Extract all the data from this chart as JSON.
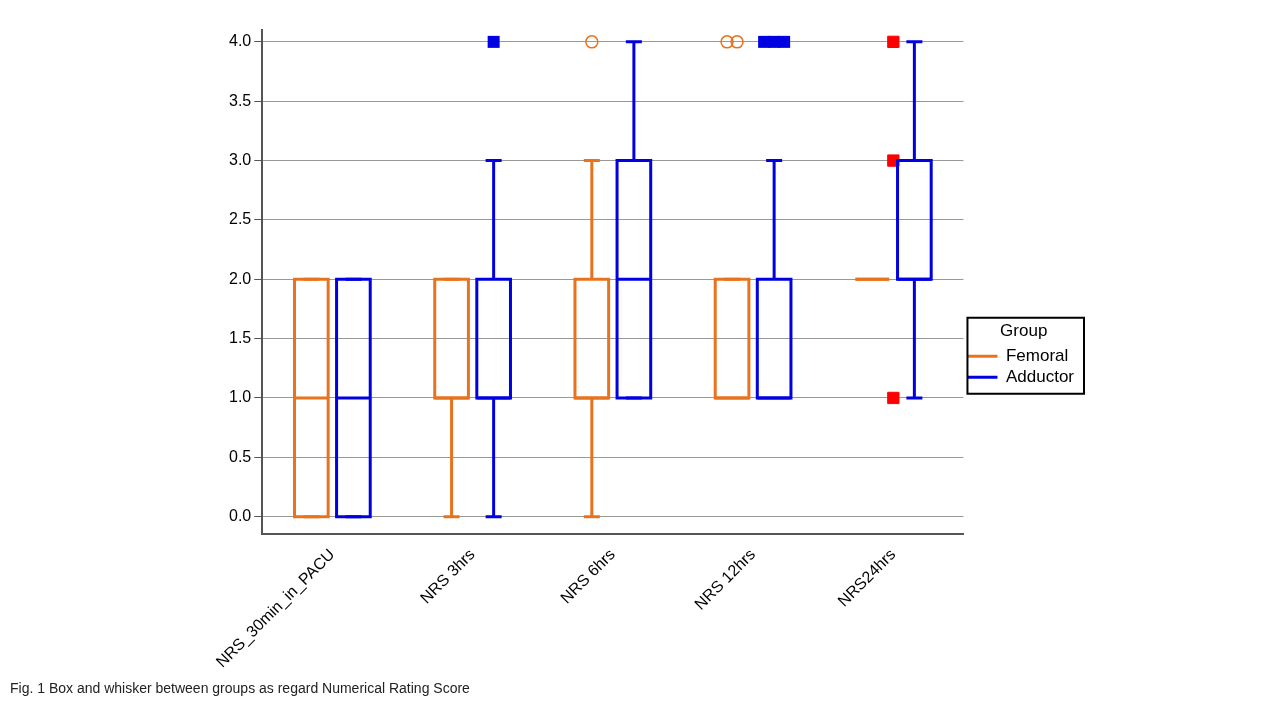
{
  "chart_data": {
    "type": "box",
    "categories": [
      "NRS_30min_in_PACU",
      "NRS 3hrs",
      "NRS 6hrs",
      "NRS 12hrs",
      "NRS24hrs"
    ],
    "legend_title": "Group",
    "legend": "right",
    "grid": "y",
    "ylim": [
      -0.15,
      4.1
    ],
    "yticks": [
      {
        "value": 0,
        "label": "0.0"
      },
      {
        "value": 0.5,
        "label": "0.5"
      },
      {
        "value": 1,
        "label": "1.0"
      },
      {
        "value": 1.5,
        "label": "1.5"
      },
      {
        "value": 2,
        "label": "2.0"
      },
      {
        "value": 2.5,
        "label": "2.5"
      },
      {
        "value": 3,
        "label": "3.0"
      },
      {
        "value": 3.5,
        "label": "3.5"
      },
      {
        "value": 4,
        "label": "4.0"
      }
    ],
    "series": [
      {
        "name": "Femoral",
        "color": "#e8731e",
        "marker": "circle",
        "boxes": [
          {
            "low": 0,
            "q1": 0,
            "median": 1,
            "q3": 2,
            "high": 2
          },
          {
            "low": 0,
            "q1": 1,
            "median": 1,
            "q3": 2,
            "high": 2
          },
          {
            "low": 0,
            "q1": 1,
            "median": 1,
            "q3": 2,
            "high": 3,
            "outliers": [
              4
            ]
          },
          {
            "low": 1,
            "q1": 1,
            "median": 1,
            "q3": 2,
            "high": 2,
            "outliers": [
              4,
              4
            ]
          },
          {
            "low": 2,
            "q1": 2,
            "median": 2,
            "q3": 2,
            "high": 2
          }
        ]
      },
      {
        "name": "Adductor",
        "color": "#0000e0",
        "marker": "square",
        "boxes": [
          {
            "low": 0,
            "q1": 0,
            "median": 1,
            "q3": 2,
            "high": 2
          },
          {
            "low": 0,
            "q1": 1,
            "median": 1,
            "q3": 2,
            "high": 3,
            "outliers": [
              4
            ]
          },
          {
            "low": 1,
            "q1": 1,
            "median": 2,
            "q3": 3,
            "high": 4
          },
          {
            "low": 1,
            "q1": 1,
            "median": 1,
            "q3": 2,
            "high": 3,
            "outliers": [
              4,
              4,
              4
            ]
          },
          {
            "low": 1,
            "q1": 2,
            "median": 2,
            "q3": 3,
            "high": 4
          }
        ]
      },
      {
        "type": "scatter",
        "color": "#ff0000",
        "marker": "square",
        "x": [
          "NRS24hrs",
          "NRS24hrs",
          "NRS24hrs"
        ],
        "values": [
          1,
          3,
          4
        ]
      }
    ],
    "annotations": [
      "Fig. 1 Box and whisker between groups as regard Numerical Rating Score"
    ]
  }
}
